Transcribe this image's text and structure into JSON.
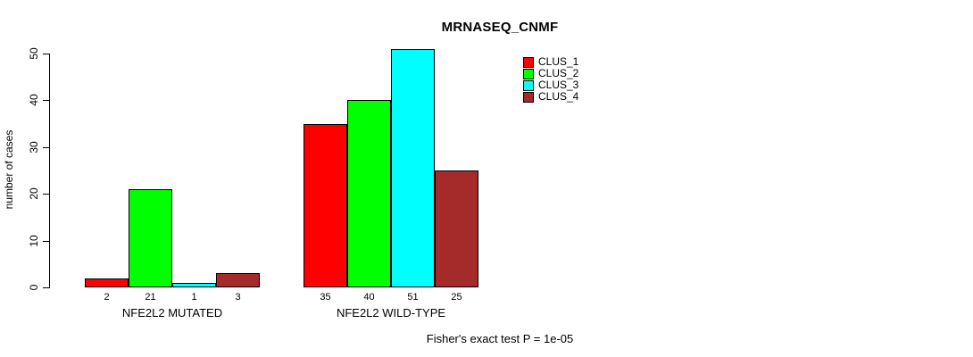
{
  "chart_data": {
    "type": "bar",
    "title": "MRNASEQ_CNMF",
    "ylabel": "number of cases",
    "annotation": "Fisher's exact test P = 1e-05",
    "groups": [
      "NFE2L2 MUTATED",
      "NFE2L2 WILD-TYPE"
    ],
    "series": [
      {
        "name": "CLUS_1",
        "color": "#ff0000",
        "values": [
          2,
          35
        ]
      },
      {
        "name": "CLUS_2",
        "color": "#00ff00",
        "values": [
          21,
          40
        ]
      },
      {
        "name": "CLUS_3",
        "color": "#00ffff",
        "values": [
          1,
          51
        ]
      },
      {
        "name": "CLUS_4",
        "color": "#a52a2a",
        "values": [
          3,
          25
        ]
      }
    ],
    "bar_value_labels": [
      [
        2,
        21,
        1,
        3
      ],
      [
        35,
        40,
        51,
        25
      ]
    ],
    "yticks": [
      0,
      10,
      20,
      30,
      40,
      50
    ],
    "ylim": [
      0,
      50
    ],
    "grid": false,
    "legend_position": "top-right",
    "background_color": "#ffffff",
    "axis_color": "#000000"
  }
}
